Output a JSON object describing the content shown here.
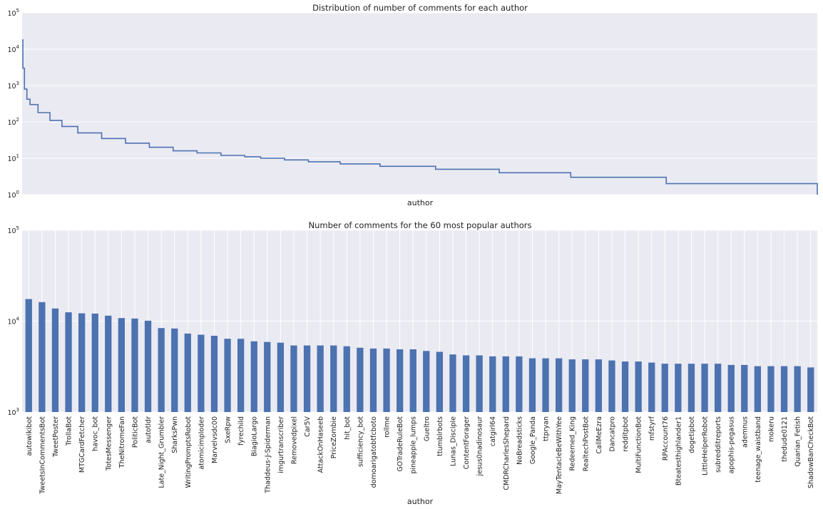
{
  "chart_data": [
    {
      "type": "line",
      "title": "Distribution of number of comments for each author",
      "xlabel": "author",
      "ylabel": "",
      "yscale": "log",
      "ylim": [
        1,
        100000
      ],
      "yticks": [
        {
          "value": 1,
          "base": "10",
          "exp": "0"
        },
        {
          "value": 10,
          "base": "10",
          "exp": "1"
        },
        {
          "value": 100,
          "base": "10",
          "exp": "2"
        },
        {
          "value": 1000,
          "base": "10",
          "exp": "3"
        },
        {
          "value": 10000,
          "base": "10",
          "exp": "4"
        },
        {
          "value": 100000,
          "base": "10",
          "exp": "5"
        }
      ],
      "grid": true,
      "legend": "none",
      "x_ticks_shown": false,
      "color": "#4c72b0",
      "background": "#eaeaf2",
      "x": [
        0,
        0.001,
        0.003,
        0.006,
        0.01,
        0.02,
        0.035,
        0.05,
        0.07,
        0.1,
        0.13,
        0.16,
        0.19,
        0.22,
        0.25,
        0.28,
        0.3,
        0.33,
        0.36,
        0.4,
        0.45,
        0.52,
        0.6,
        0.69,
        0.81,
        1.0
      ],
      "y": [
        18000,
        3000,
        800,
        420,
        300,
        180,
        110,
        75,
        50,
        35,
        26,
        20,
        16,
        14,
        12,
        11,
        10,
        9,
        8,
        7,
        6,
        5,
        4,
        3,
        2,
        1
      ]
    },
    {
      "type": "bar",
      "title": "Number of comments for the 60 most popular authors",
      "xlabel": "author",
      "ylabel": "",
      "yscale": "log",
      "ylim": [
        1000,
        100000
      ],
      "yticks": [
        {
          "value": 1000,
          "base": "10",
          "exp": "3"
        },
        {
          "value": 10000,
          "base": "10",
          "exp": "4"
        },
        {
          "value": 100000,
          "base": "10",
          "exp": "5"
        }
      ],
      "grid": true,
      "legend": "none",
      "color": "#4c72b0",
      "background": "#eaeaf2",
      "categories": [
        "autowikibot",
        "TweetsInCommentsBot",
        "TweetPoster",
        "TrollaBot",
        "MTGCardFetcher",
        "havoc_bot",
        "TotesMessenger",
        "TheNitromeFan",
        "PoliticBot",
        "autotldr",
        "Late_Night_Grumbler",
        "SharksPwn",
        "WritingPromptsRobot",
        "atomicimploder",
        "Marvelvsdc00",
        "SxeRpw",
        "fyrechild",
        "BiagioLargo",
        "Thaddeus-J-Spiderman",
        "imgurtranscriber",
        "Removedpixel",
        "Car5V",
        "AttackOnHaseeb",
        "PriceZombie",
        "hit_bot",
        "sufficiency_bot",
        "domoarigatobtfcboto",
        "rollme",
        "GOTradeRuleBot",
        "pineapple_lumps",
        "Gueltro",
        "ttumblrbots",
        "Lunas_Disciple",
        "ContentForager",
        "jesus0nadinosaur",
        "catgirl64",
        "CMDRCharlesShepard",
        "NoBreadsticks",
        "Google_Panda",
        "ttpryan",
        "MayTentacleBeWithYee",
        "Redeemed_King",
        "RealtechPostBot",
        "CallMeEzra",
        "Dancatpro",
        "redditpbot",
        "MultiFunctionBot",
        "mfstyrf",
        "RPAccount76",
        "Bteatesthighlander1",
        "dogetipbot",
        "LittleHelperRobot",
        "subredditreports",
        "apophis-pegasus",
        "ademnus",
        "teenage_waistband",
        "mokeru",
        "thedude0121",
        "Quarian_Fetish",
        "ShadowBanCheckBot"
      ],
      "values": [
        17500,
        16200,
        13800,
        12500,
        12200,
        12100,
        11500,
        10800,
        10700,
        10100,
        8400,
        8300,
        7300,
        7100,
        6900,
        6400,
        6400,
        6000,
        5900,
        5800,
        5400,
        5400,
        5400,
        5400,
        5300,
        5100,
        5000,
        5000,
        4900,
        4900,
        4700,
        4600,
        4300,
        4200,
        4200,
        4100,
        4100,
        4100,
        3900,
        3900,
        3900,
        3800,
        3800,
        3800,
        3700,
        3600,
        3600,
        3500,
        3400,
        3400,
        3400,
        3400,
        3400,
        3300,
        3300,
        3200,
        3200,
        3200,
        3200,
        3100
      ]
    }
  ]
}
